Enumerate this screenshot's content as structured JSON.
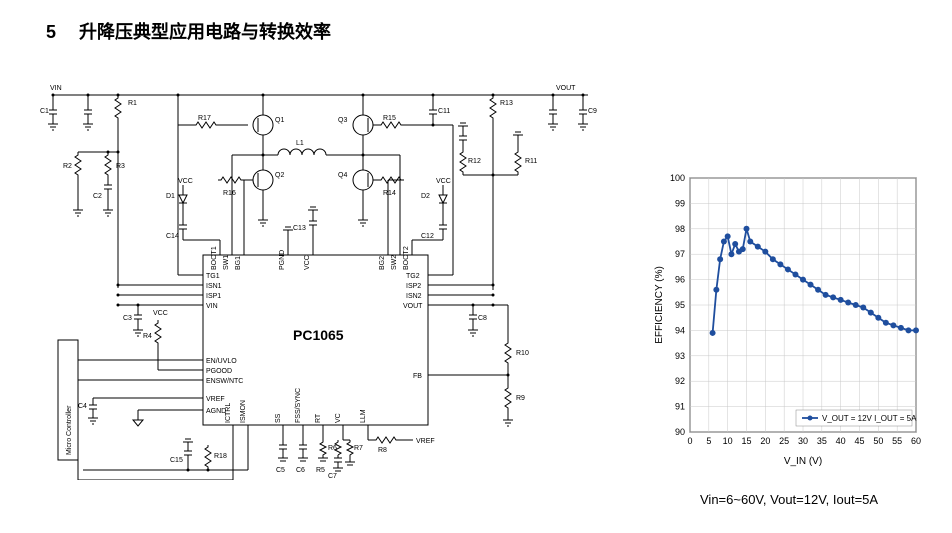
{
  "section_number": "5",
  "section_title": "升降压典型应用电路与转换效率",
  "schematic": {
    "chip_name": "PC1065",
    "mcu_label": "Micro Controller",
    "top_left_label": "VIN",
    "top_right_label": "VOUT",
    "vref_label": "VREF",
    "vcc_label": "VCC",
    "pins_left": [
      "BOOT1",
      "SW1",
      "BG1",
      "TG1",
      "ISN1",
      "ISP1",
      "VIN",
      "EN/UVLO",
      "PGOOD",
      "ENSW/NTC",
      "VREF",
      "AGND"
    ],
    "pins_right": [
      "BG2",
      "SW2",
      "BOOT2",
      "TG2",
      "ISP2",
      "ISN2",
      "VOUT",
      "FB"
    ],
    "pins_top": [
      "PGND",
      "VCC"
    ],
    "pins_bottom_left_side": [
      "ICTRL",
      "ISMON"
    ],
    "pins_bottom": [
      "SS",
      "FSS/SYNC",
      "RT",
      "VC",
      "LLM"
    ],
    "components": {
      "c1": "C1",
      "c2": "C2",
      "c3": "C3",
      "c4": "C4",
      "c5": "C5",
      "c6": "C6",
      "c7": "C7",
      "c8": "C8",
      "c9": "C9",
      "c11": "C11",
      "c12": "C12",
      "c13": "C13",
      "c14": "C14",
      "c15": "C15",
      "r1": "R1",
      "r2": "R2",
      "r3": "R3",
      "r4": "R4",
      "r5": "R5",
      "r6": "R6",
      "r7": "R7",
      "r8": "R8",
      "r9": "R9",
      "r10": "R10",
      "r11": "R11",
      "r12": "R12",
      "r13": "R13",
      "r14": "R14",
      "r15": "R15",
      "r16": "R16",
      "r17": "R17",
      "r18": "R18",
      "q1": "Q1",
      "q2": "Q2",
      "q3": "Q3",
      "q4": "Q4",
      "d1": "D1",
      "d2": "D2",
      "l1": "L1"
    }
  },
  "chart": {
    "type": "line",
    "title": "",
    "xlabel": "V_IN (V)",
    "ylabel": "EFFICIENCY (%)",
    "xlim": [
      0,
      60
    ],
    "ylim": [
      90,
      100
    ],
    "xticks": [
      0,
      5,
      10,
      15,
      20,
      25,
      30,
      35,
      40,
      45,
      50,
      55,
      60
    ],
    "yticks": [
      90,
      91,
      92,
      93,
      94,
      95,
      96,
      97,
      98,
      99,
      100
    ],
    "grid_color": "#c8c8c8",
    "background": "#ffffff",
    "line_color": "#1f4e9e",
    "marker": "circle",
    "marker_size": 3,
    "legend_label": "V_OUT = 12V I_OUT = 5A",
    "caption": "Vin=6~60V, Vout=12V, Iout=5A",
    "data": [
      [
        6,
        93.9
      ],
      [
        7,
        95.6
      ],
      [
        8,
        96.8
      ],
      [
        9,
        97.5
      ],
      [
        10,
        97.7
      ],
      [
        11,
        97.0
      ],
      [
        12,
        97.4
      ],
      [
        13,
        97.1
      ],
      [
        14,
        97.2
      ],
      [
        15,
        98.0
      ],
      [
        16,
        97.5
      ],
      [
        18,
        97.3
      ],
      [
        20,
        97.1
      ],
      [
        22,
        96.8
      ],
      [
        24,
        96.6
      ],
      [
        26,
        96.4
      ],
      [
        28,
        96.2
      ],
      [
        30,
        96.0
      ],
      [
        32,
        95.8
      ],
      [
        34,
        95.6
      ],
      [
        36,
        95.4
      ],
      [
        38,
        95.3
      ],
      [
        40,
        95.2
      ],
      [
        42,
        95.1
      ],
      [
        44,
        95.0
      ],
      [
        46,
        94.9
      ],
      [
        48,
        94.7
      ],
      [
        50,
        94.5
      ],
      [
        52,
        94.3
      ],
      [
        54,
        94.2
      ],
      [
        56,
        94.1
      ],
      [
        58,
        94.0
      ],
      [
        60,
        94.0
      ]
    ]
  }
}
